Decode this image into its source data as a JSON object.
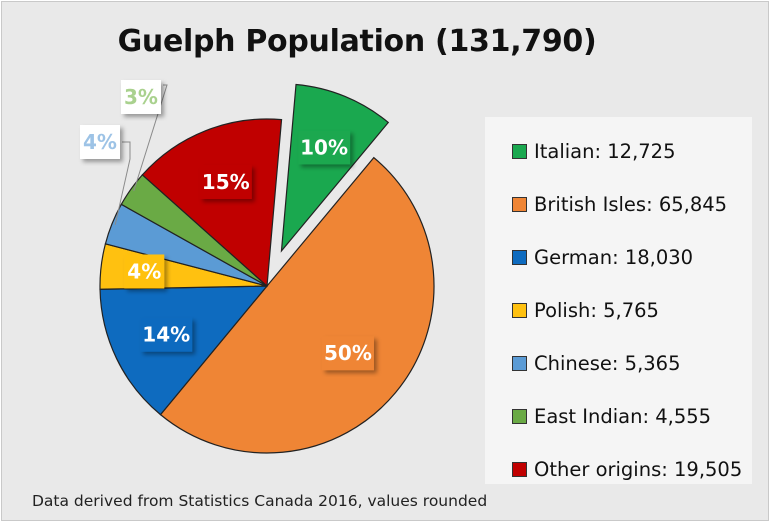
{
  "chart_data": {
    "type": "pie",
    "title": "Guelph Population (131,790)",
    "footnote": "Data derived from Statistics Canada 2016, values rounded",
    "slices": [
      {
        "name": "Italian",
        "value": 12725,
        "value_label": "12,725",
        "percent_label": "10%",
        "color": "#1aa84f",
        "label_inside": true,
        "exploded": true
      },
      {
        "name": "British Isles",
        "value": 65845,
        "value_label": "65,845",
        "percent_label": "50%",
        "color": "#ef8535",
        "label_inside": true,
        "exploded": false
      },
      {
        "name": "German",
        "value": 18030,
        "value_label": "18,030",
        "percent_label": "14%",
        "color": "#0e6bbf",
        "label_inside": true,
        "exploded": false
      },
      {
        "name": "Polish",
        "value": 5765,
        "value_label": "5,765",
        "percent_label": "4%",
        "color": "#ffc110",
        "label_inside": true,
        "exploded": false
      },
      {
        "name": "Chinese",
        "value": 5365,
        "value_label": "5,365",
        "percent_label": "4%",
        "color": "#5b9bd5",
        "label_inside": false,
        "exploded": false
      },
      {
        "name": "East Indian",
        "value": 4555,
        "value_label": "4,555",
        "percent_label": "3%",
        "color": "#6aaa45",
        "label_inside": false,
        "exploded": false
      },
      {
        "name": "Other origins",
        "value": 19505,
        "value_label": "19,505",
        "percent_label": "15%",
        "color": "#c00000",
        "label_inside": true,
        "exploded": false
      }
    ],
    "legend_position": "right"
  }
}
